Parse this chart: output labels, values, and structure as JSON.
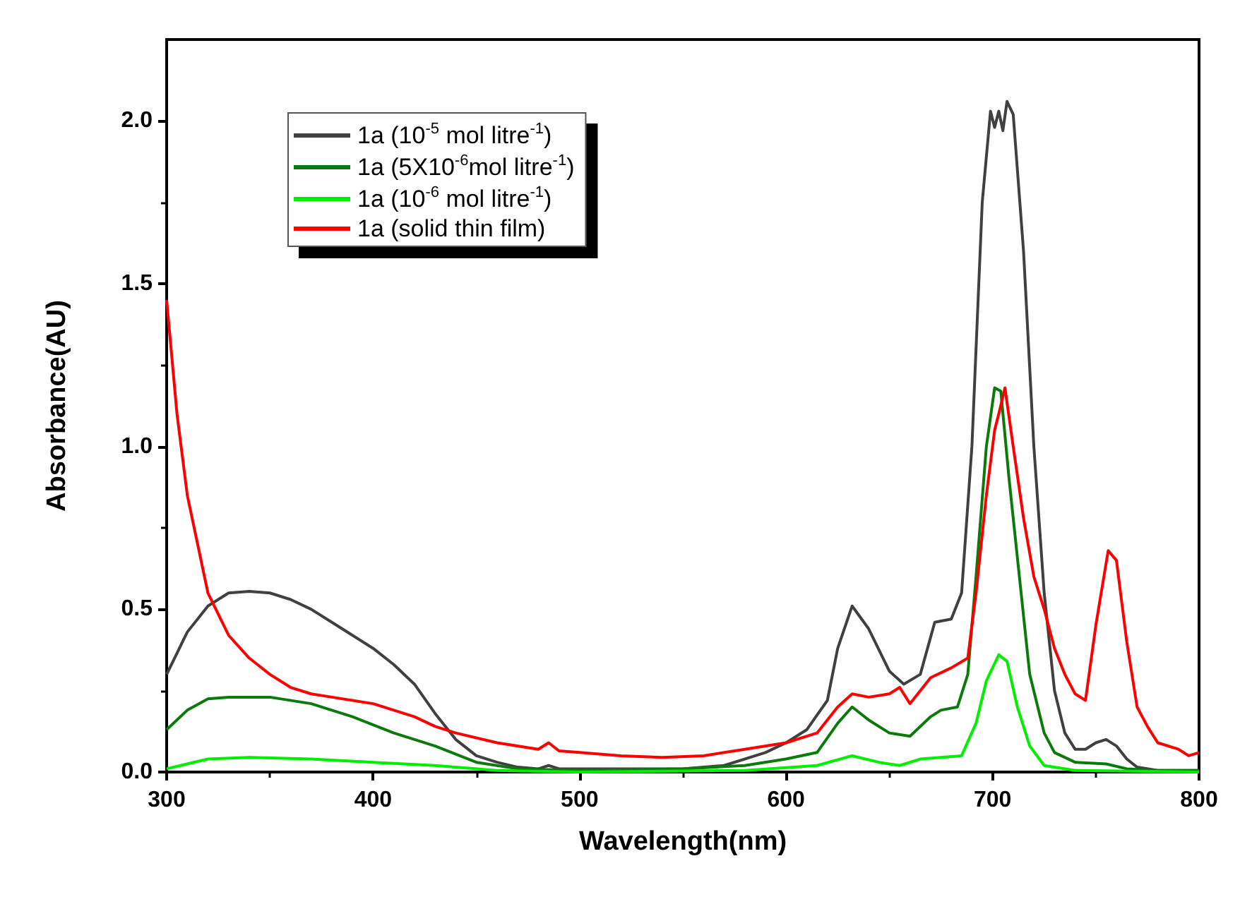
{
  "chart_data": {
    "type": "line",
    "xlabel": "Wavelength(nm)",
    "ylabel": "Absorbance(AU)",
    "xlim": [
      300,
      800
    ],
    "ylim": [
      0,
      2.25
    ],
    "xticks": [
      300,
      400,
      500,
      600,
      700,
      800
    ],
    "yticks": [
      {
        "value": 0,
        "label": "0.0"
      },
      0.5,
      {
        "value": 1,
        "label": "1.0"
      },
      1.5,
      {
        "value": 2,
        "label": "2.0"
      }
    ],
    "grid": false,
    "legend": "top left",
    "marker": "none",
    "line_style": "solid",
    "series": [
      {
        "name": "1a (10$^{-5}$ mol litre$^{-1}$)",
        "color": "#404040",
        "x": [
          300,
          310,
          320,
          330,
          340,
          350,
          360,
          370,
          380,
          390,
          400,
          410,
          420,
          430,
          440,
          450,
          460,
          470,
          480,
          485,
          490,
          500,
          550,
          570,
          590,
          600,
          610,
          620,
          625,
          632,
          640,
          650,
          657,
          665,
          672,
          680,
          685,
          690,
          695,
          699,
          701,
          703,
          705,
          707,
          710,
          715,
          720,
          725,
          730,
          735,
          740,
          745,
          750,
          755,
          760,
          765,
          770,
          780,
          800
        ],
        "values": [
          0.3,
          0.43,
          0.51,
          0.55,
          0.555,
          0.55,
          0.53,
          0.5,
          0.46,
          0.42,
          0.38,
          0.33,
          0.27,
          0.18,
          0.1,
          0.05,
          0.03,
          0.015,
          0.01,
          0.02,
          0.01,
          0.01,
          0.01,
          0.02,
          0.06,
          0.09,
          0.13,
          0.22,
          0.38,
          0.51,
          0.44,
          0.31,
          0.27,
          0.3,
          0.46,
          0.47,
          0.55,
          1.0,
          1.75,
          2.03,
          1.98,
          2.03,
          1.97,
          2.06,
          2.02,
          1.6,
          1.0,
          0.55,
          0.25,
          0.12,
          0.07,
          0.07,
          0.09,
          0.1,
          0.08,
          0.04,
          0.015,
          0.005,
          0.005
        ]
      },
      {
        "name": "1a (5X10$^{-6}$mol litre$^{-1}$)",
        "color": "#0a7a0a",
        "x": [
          300,
          310,
          320,
          330,
          350,
          370,
          390,
          410,
          430,
          450,
          470,
          500,
          550,
          580,
          600,
          615,
          625,
          632,
          640,
          650,
          660,
          670,
          675,
          683,
          688,
          692,
          697,
          701,
          704,
          708,
          713,
          718,
          725,
          730,
          740,
          755,
          765,
          780,
          800
        ],
        "values": [
          0.13,
          0.19,
          0.225,
          0.23,
          0.23,
          0.21,
          0.17,
          0.12,
          0.08,
          0.03,
          0.01,
          0.005,
          0.01,
          0.02,
          0.04,
          0.06,
          0.15,
          0.2,
          0.16,
          0.12,
          0.11,
          0.17,
          0.19,
          0.2,
          0.3,
          0.6,
          1.0,
          1.18,
          1.17,
          0.9,
          0.6,
          0.3,
          0.12,
          0.06,
          0.03,
          0.025,
          0.01,
          0.005,
          0.005
        ]
      },
      {
        "name": "1a (10$^{-6}$ mol litre$^{-1}$)",
        "color": "#00ee00",
        "x": [
          300,
          320,
          340,
          370,
          400,
          430,
          460,
          500,
          580,
          615,
          632,
          645,
          655,
          665,
          685,
          692,
          697,
          703,
          707,
          712,
          718,
          725,
          740,
          800
        ],
        "values": [
          0.01,
          0.04,
          0.045,
          0.04,
          0.03,
          0.02,
          0.005,
          0.0,
          0.005,
          0.02,
          0.05,
          0.03,
          0.02,
          0.04,
          0.05,
          0.15,
          0.28,
          0.36,
          0.34,
          0.2,
          0.08,
          0.02,
          0.005,
          0.0
        ]
      },
      {
        "name": "1a (solid thin film)",
        "color": "#ff0000",
        "x": [
          300,
          305,
          310,
          320,
          330,
          340,
          350,
          360,
          370,
          380,
          400,
          410,
          420,
          430,
          440,
          460,
          480,
          485,
          490,
          500,
          520,
          540,
          560,
          580,
          600,
          615,
          625,
          632,
          640,
          650,
          655,
          660,
          665,
          670,
          680,
          688,
          692,
          697,
          701,
          703,
          706,
          710,
          715,
          720,
          725,
          730,
          735,
          740,
          745,
          750,
          756,
          760,
          765,
          770,
          775,
          780,
          790,
          795,
          800
        ],
        "values": [
          1.45,
          1.1,
          0.85,
          0.55,
          0.42,
          0.35,
          0.3,
          0.26,
          0.24,
          0.23,
          0.21,
          0.19,
          0.17,
          0.14,
          0.12,
          0.09,
          0.07,
          0.09,
          0.065,
          0.06,
          0.05,
          0.045,
          0.05,
          0.07,
          0.09,
          0.12,
          0.2,
          0.24,
          0.23,
          0.24,
          0.26,
          0.21,
          0.25,
          0.29,
          0.32,
          0.35,
          0.55,
          0.85,
          1.05,
          1.1,
          1.18,
          1.0,
          0.78,
          0.6,
          0.5,
          0.38,
          0.3,
          0.24,
          0.22,
          0.45,
          0.68,
          0.65,
          0.4,
          0.2,
          0.14,
          0.09,
          0.07,
          0.05,
          0.06
        ]
      }
    ]
  }
}
